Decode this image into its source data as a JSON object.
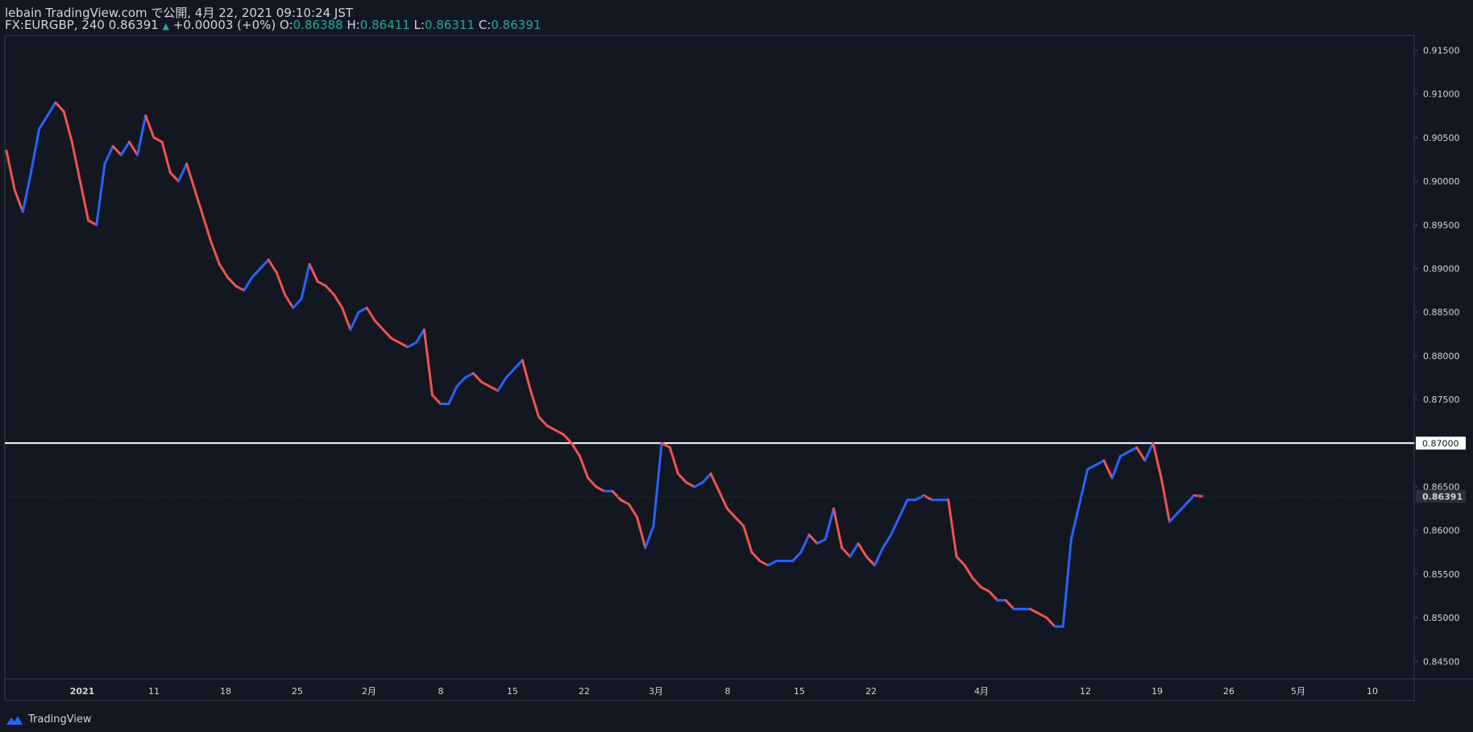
{
  "header": {
    "line1": "lebain TradingView.com で公開, 4月 22, 2021 09:10:24 JST",
    "symbol": "FX:EURGBP, 240",
    "last": "0.86391",
    "change": "+0.00003 (+0%)",
    "o_label": "O:",
    "o_value": "0.86388",
    "h_label": "H:",
    "h_value": "0.86411",
    "l_label": "L:",
    "l_value": "0.86311",
    "c_label": "C:",
    "c_value": "0.86391"
  },
  "footer": {
    "brand": "TradingView"
  },
  "chart_data": {
    "type": "line",
    "symbol": "FX:EURGBP",
    "interval": "240",
    "ylim": [
      0.843,
      0.9167
    ],
    "y_ticks": [
      "0.84500",
      "0.85000",
      "0.85500",
      "0.86000",
      "0.86500",
      "0.87000",
      "0.87500",
      "0.88000",
      "0.88500",
      "0.89000",
      "0.89500",
      "0.90000",
      "0.90500",
      "0.91000",
      "0.91500"
    ],
    "x_ticks": [
      "2021",
      "11",
      "18",
      "25",
      "2月",
      "8",
      "15",
      "22",
      "3月",
      "8",
      "15",
      "22",
      "4月",
      "12",
      "19",
      "26",
      "5月",
      "10"
    ],
    "horizontal_line": 0.87,
    "last_price": 0.86391,
    "series": [
      {
        "values": [
          0.9035,
          0.899,
          0.8965,
          0.901,
          0.906,
          0.9075,
          0.909,
          0.908,
          0.9045,
          0.9,
          0.8955,
          0.895,
          0.902,
          0.904,
          0.903,
          0.9045,
          0.903,
          0.9075,
          0.905,
          0.9045,
          0.901,
          0.9,
          0.902,
          0.899,
          0.896,
          0.893,
          0.8905,
          0.889,
          0.888,
          0.8875,
          0.889,
          0.89,
          0.891,
          0.8895,
          0.887,
          0.8855,
          0.8865,
          0.8905,
          0.8885,
          0.888,
          0.887,
          0.8855,
          0.883,
          0.885,
          0.8855,
          0.884,
          0.883,
          0.882,
          0.8815,
          0.881,
          0.8815,
          0.883,
          0.8755,
          0.8745,
          0.8745,
          0.8765,
          0.8775,
          0.878,
          0.877,
          0.8765,
          0.876,
          0.8775,
          0.8785,
          0.8795,
          0.876,
          0.873,
          0.872,
          0.8715,
          0.871,
          0.87,
          0.8685,
          0.866,
          0.865,
          0.8645,
          0.8645,
          0.8635,
          0.863,
          0.8615,
          0.858,
          0.8605,
          0.87,
          0.8695,
          0.8665,
          0.8655,
          0.865,
          0.8655,
          0.8665,
          0.8645,
          0.8625,
          0.8615,
          0.8605,
          0.8575,
          0.8565,
          0.856,
          0.8565,
          0.8565,
          0.8565,
          0.8575,
          0.8595,
          0.8585,
          0.859,
          0.8625,
          0.858,
          0.857,
          0.8585,
          0.857,
          0.856,
          0.858,
          0.8595,
          0.8615,
          0.8635,
          0.8635,
          0.864,
          0.8635,
          0.8635,
          0.8635,
          0.857,
          0.856,
          0.8545,
          0.8535,
          0.853,
          0.852,
          0.852,
          0.851,
          0.851,
          0.851,
          0.8505,
          0.85,
          0.849,
          0.849,
          0.859,
          0.863,
          0.867,
          0.8675,
          0.868,
          0.866,
          0.8685,
          0.869,
          0.8695,
          0.868,
          0.87,
          0.866,
          0.861,
          0.862,
          0.863,
          0.864,
          0.8639
        ]
      }
    ]
  },
  "colors": {
    "background": "#131722",
    "up": "#2962ff",
    "down": "#ef5350",
    "teal": "#26a69a",
    "text": "#d1d4dc",
    "border": "#363c4e",
    "hline": "#ffffff"
  }
}
